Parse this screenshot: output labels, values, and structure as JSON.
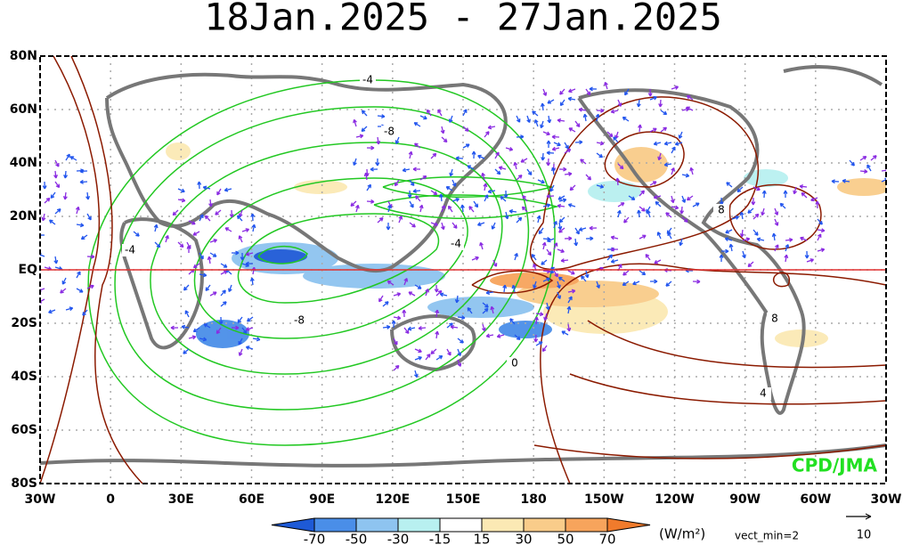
{
  "title": "18Jan.2025 - 27Jan.2025",
  "lat_labels": [
    "80N",
    "60N",
    "40N",
    "20N",
    "EQ",
    "20S",
    "40S",
    "60S",
    "80S"
  ],
  "lon_labels": [
    "30W",
    "0",
    "30E",
    "60E",
    "90E",
    "120E",
    "150E",
    "180",
    "150W",
    "120W",
    "90W",
    "60W",
    "30W"
  ],
  "contour_labels": [
    -4,
    -8,
    -4,
    -4,
    -8,
    8,
    8,
    4,
    0
  ],
  "colorbar": {
    "ticks": [
      -70,
      -50,
      -30,
      -15,
      15,
      30,
      50,
      70
    ],
    "colors": [
      "#1e5ad6",
      "#4a8ee8",
      "#8ec4f0",
      "#b8f0f0",
      "#ffffff",
      "#fbe9b4",
      "#f9cc8a",
      "#f7a45c",
      "#f07b2c"
    ]
  },
  "unit": "(W/m²)",
  "vect_min": "vect_min=2",
  "ref_vector": "10",
  "credit": "CPD/JMA"
}
